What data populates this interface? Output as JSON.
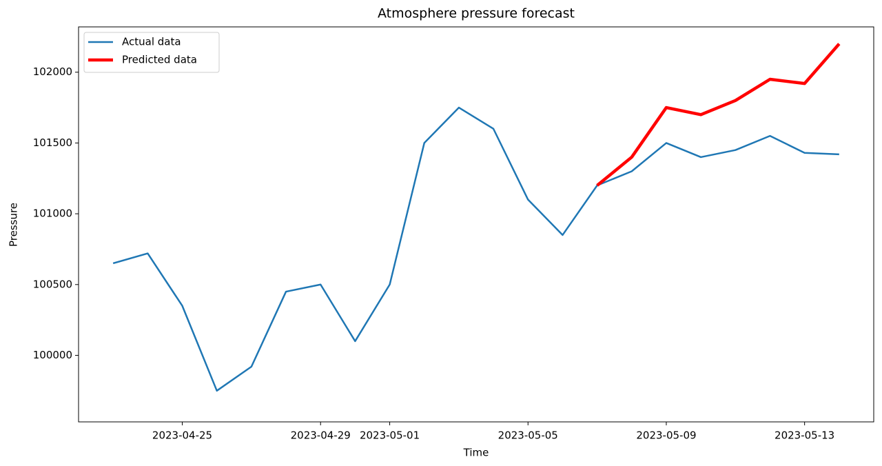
{
  "chart_data": {
    "type": "line",
    "title": "Atmosphere pressure forecast",
    "x_label": "Time",
    "y_label": "Pressure",
    "x": [
      "2023-04-23",
      "2023-04-24",
      "2023-04-25",
      "2023-04-26",
      "2023-04-27",
      "2023-04-28",
      "2023-04-29",
      "2023-04-30",
      "2023-05-01",
      "2023-05-02",
      "2023-05-03",
      "2023-05-04",
      "2023-05-05",
      "2023-05-06",
      "2023-05-07",
      "2023-05-08",
      "2023-05-09",
      "2023-05-10",
      "2023-05-11",
      "2023-05-12",
      "2023-05-13",
      "2023-05-14"
    ],
    "series": [
      {
        "name": "Actual data",
        "color": "#1f77b4",
        "values": [
          100650,
          100720,
          100350,
          99750,
          99920,
          100450,
          100500,
          100100,
          100500,
          101500,
          101750,
          101600,
          101100,
          100850,
          101200,
          101300,
          101500,
          101400,
          101450,
          101550,
          101430,
          101420
        ]
      },
      {
        "name": "Predicted data",
        "color": "#ff0000",
        "values": [
          null,
          null,
          null,
          null,
          null,
          null,
          null,
          null,
          null,
          null,
          null,
          null,
          null,
          null,
          101200,
          101400,
          101750,
          101700,
          101800,
          101950,
          101920,
          102200
        ]
      }
    ],
    "xlim": [
      "2023-04-22",
      "2023-05-15"
    ],
    "xticks": [
      "2023-04-25",
      "2023-04-29",
      "2023-05-01",
      "2023-05-05",
      "2023-05-09",
      "2023-05-13"
    ],
    "ylim": [
      99530,
      102320
    ],
    "yticks": [
      100000,
      100500,
      101000,
      101500,
      102000
    ],
    "legend": "upper left"
  }
}
